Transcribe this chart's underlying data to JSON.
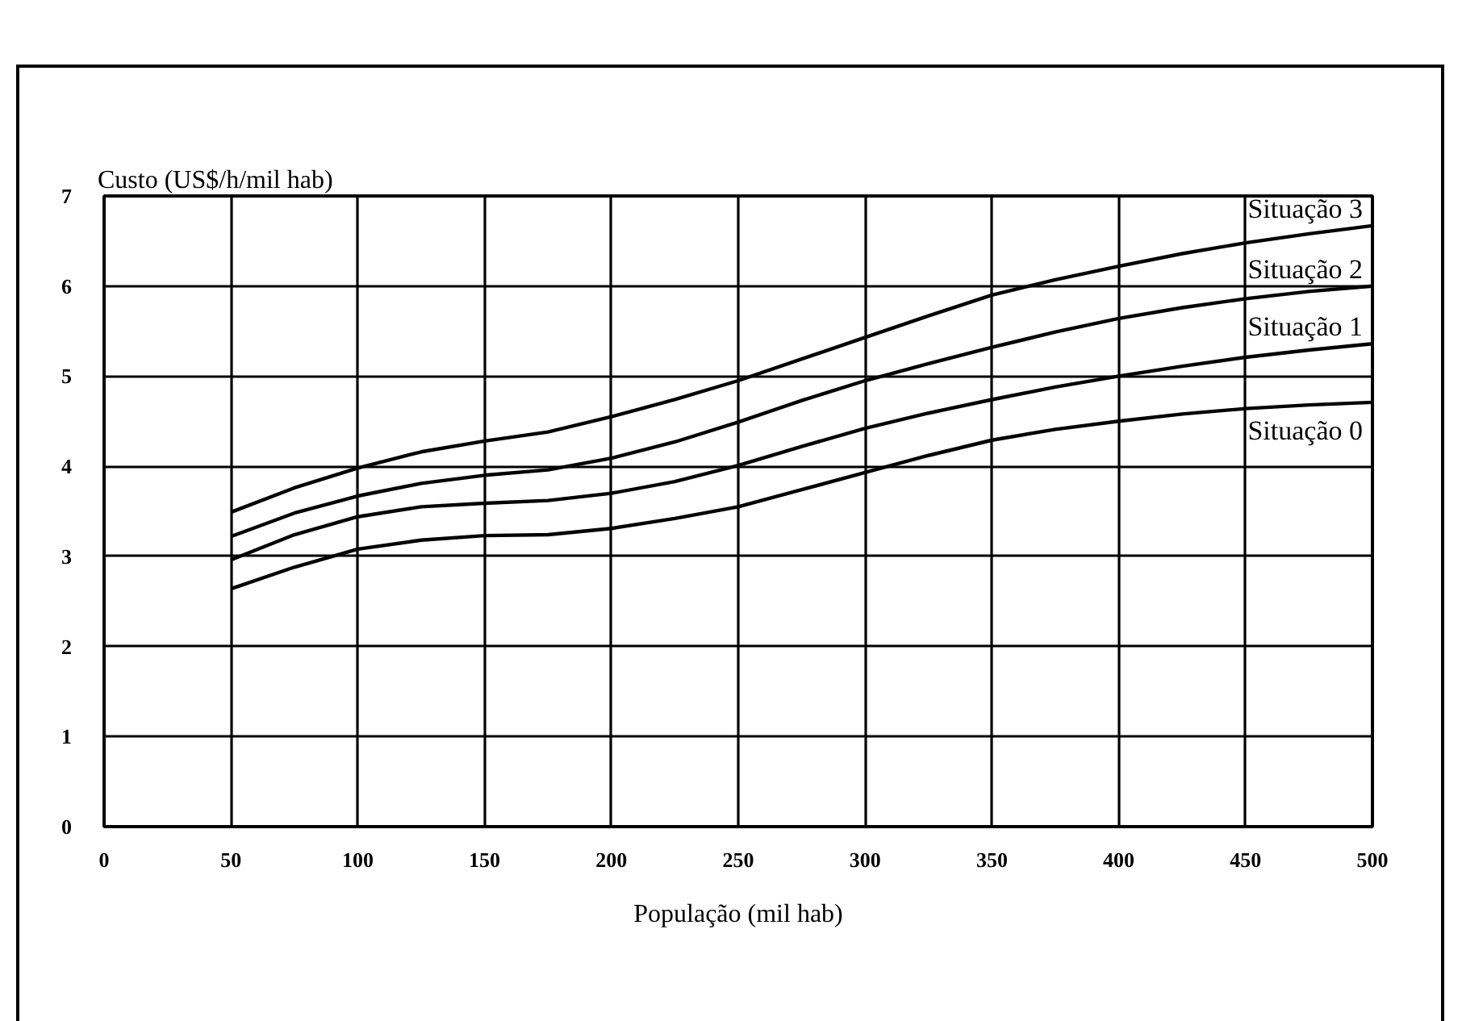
{
  "chart_data": {
    "type": "line",
    "xlabel": "População (mil hab)",
    "ylabel": "Custo (US$/h/mil hab)",
    "x": [
      50,
      75,
      100,
      125,
      150,
      175,
      200,
      225,
      250,
      275,
      300,
      325,
      350,
      375,
      400,
      425,
      450,
      475,
      500
    ],
    "series": [
      {
        "name": "Situação 0",
        "color": "#000000",
        "values": [
          2.64,
          2.88,
          3.08,
          3.18,
          3.23,
          3.24,
          3.31,
          3.42,
          3.55,
          3.74,
          3.93,
          4.12,
          4.29,
          4.41,
          4.5,
          4.58,
          4.64,
          4.68,
          4.71
        ]
      },
      {
        "name": "Situação 1",
        "color": "#000000",
        "values": [
          2.96,
          3.24,
          3.44,
          3.55,
          3.59,
          3.62,
          3.7,
          3.83,
          4.01,
          4.22,
          4.42,
          4.59,
          4.74,
          4.88,
          5.0,
          5.11,
          5.21,
          5.29,
          5.36
        ]
      },
      {
        "name": "Situação 2",
        "color": "#000000",
        "values": [
          3.22,
          3.48,
          3.67,
          3.81,
          3.9,
          3.96,
          4.09,
          4.27,
          4.49,
          4.73,
          4.95,
          5.14,
          5.32,
          5.49,
          5.64,
          5.76,
          5.86,
          5.94,
          6.0
        ]
      },
      {
        "name": "Situação 3",
        "color": "#000000",
        "values": [
          3.49,
          3.76,
          3.98,
          4.16,
          4.28,
          4.38,
          4.55,
          4.74,
          4.95,
          5.19,
          5.43,
          5.67,
          5.9,
          6.07,
          6.22,
          6.36,
          6.48,
          6.58,
          6.67
        ]
      }
    ],
    "xlim": [
      0,
      500
    ],
    "ylim": [
      0,
      7
    ],
    "xticks": [
      0,
      50,
      100,
      150,
      200,
      250,
      300,
      350,
      400,
      450,
      500
    ],
    "yticks": [
      0,
      1,
      2,
      3,
      4,
      5,
      6,
      7
    ],
    "grid": true
  }
}
